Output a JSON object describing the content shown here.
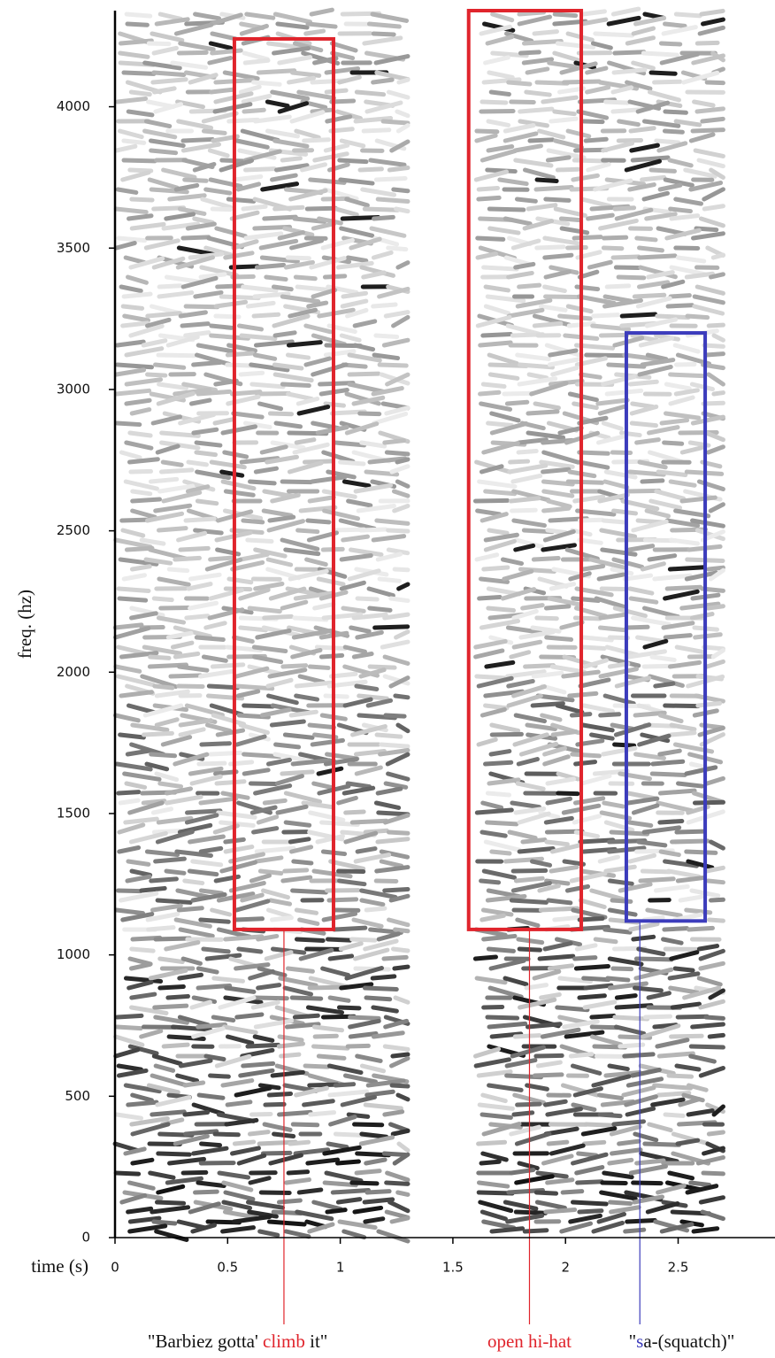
{
  "chart_data": {
    "type": "spectrogram",
    "x_label": "time (s)",
    "y_label": "freq. (hz)",
    "xlim": [
      0,
      2.93
    ],
    "ylim": [
      0,
      4340
    ],
    "xticks": [
      0,
      0.5,
      1,
      1.5,
      2,
      2.5
    ],
    "yticks": [
      0,
      500,
      1000,
      1500,
      2000,
      2500,
      3000,
      3500,
      4000
    ],
    "segments": [
      [
        0,
        1.3
      ],
      [
        1.6,
        2.7
      ]
    ],
    "annotations": [
      {
        "color": "#e0242c",
        "xlim": [
          0.53,
          0.97
        ],
        "ylim": [
          1090,
          4240
        ],
        "pointer_x": 0.75,
        "label_parts": [
          {
            "text": "\"Barbiez gotta' ",
            "color": "#111111"
          },
          {
            "text": "climb",
            "color": "#e0242c"
          },
          {
            "text": " it\"",
            "color": "#111111"
          }
        ],
        "pointer_part": 1
      },
      {
        "color": "#e0242c",
        "xlim": [
          1.57,
          2.07
        ],
        "ylim": [
          1090,
          4340
        ],
        "pointer_x": 1.84,
        "label_parts": [
          {
            "text": "open hi-hat",
            "color": "#e0242c"
          }
        ],
        "pointer_part": 0
      },
      {
        "color": "#3c3cbc",
        "xlim": [
          2.27,
          2.62
        ],
        "ylim": [
          1120,
          3200
        ],
        "pointer_x": 2.33,
        "label_parts": [
          {
            "text": "\"",
            "color": "#111111"
          },
          {
            "text": "s",
            "color": "#3c3cbc"
          },
          {
            "text": "a-(squatch)\"",
            "color": "#111111"
          }
        ],
        "pointer_part": 1
      }
    ]
  }
}
